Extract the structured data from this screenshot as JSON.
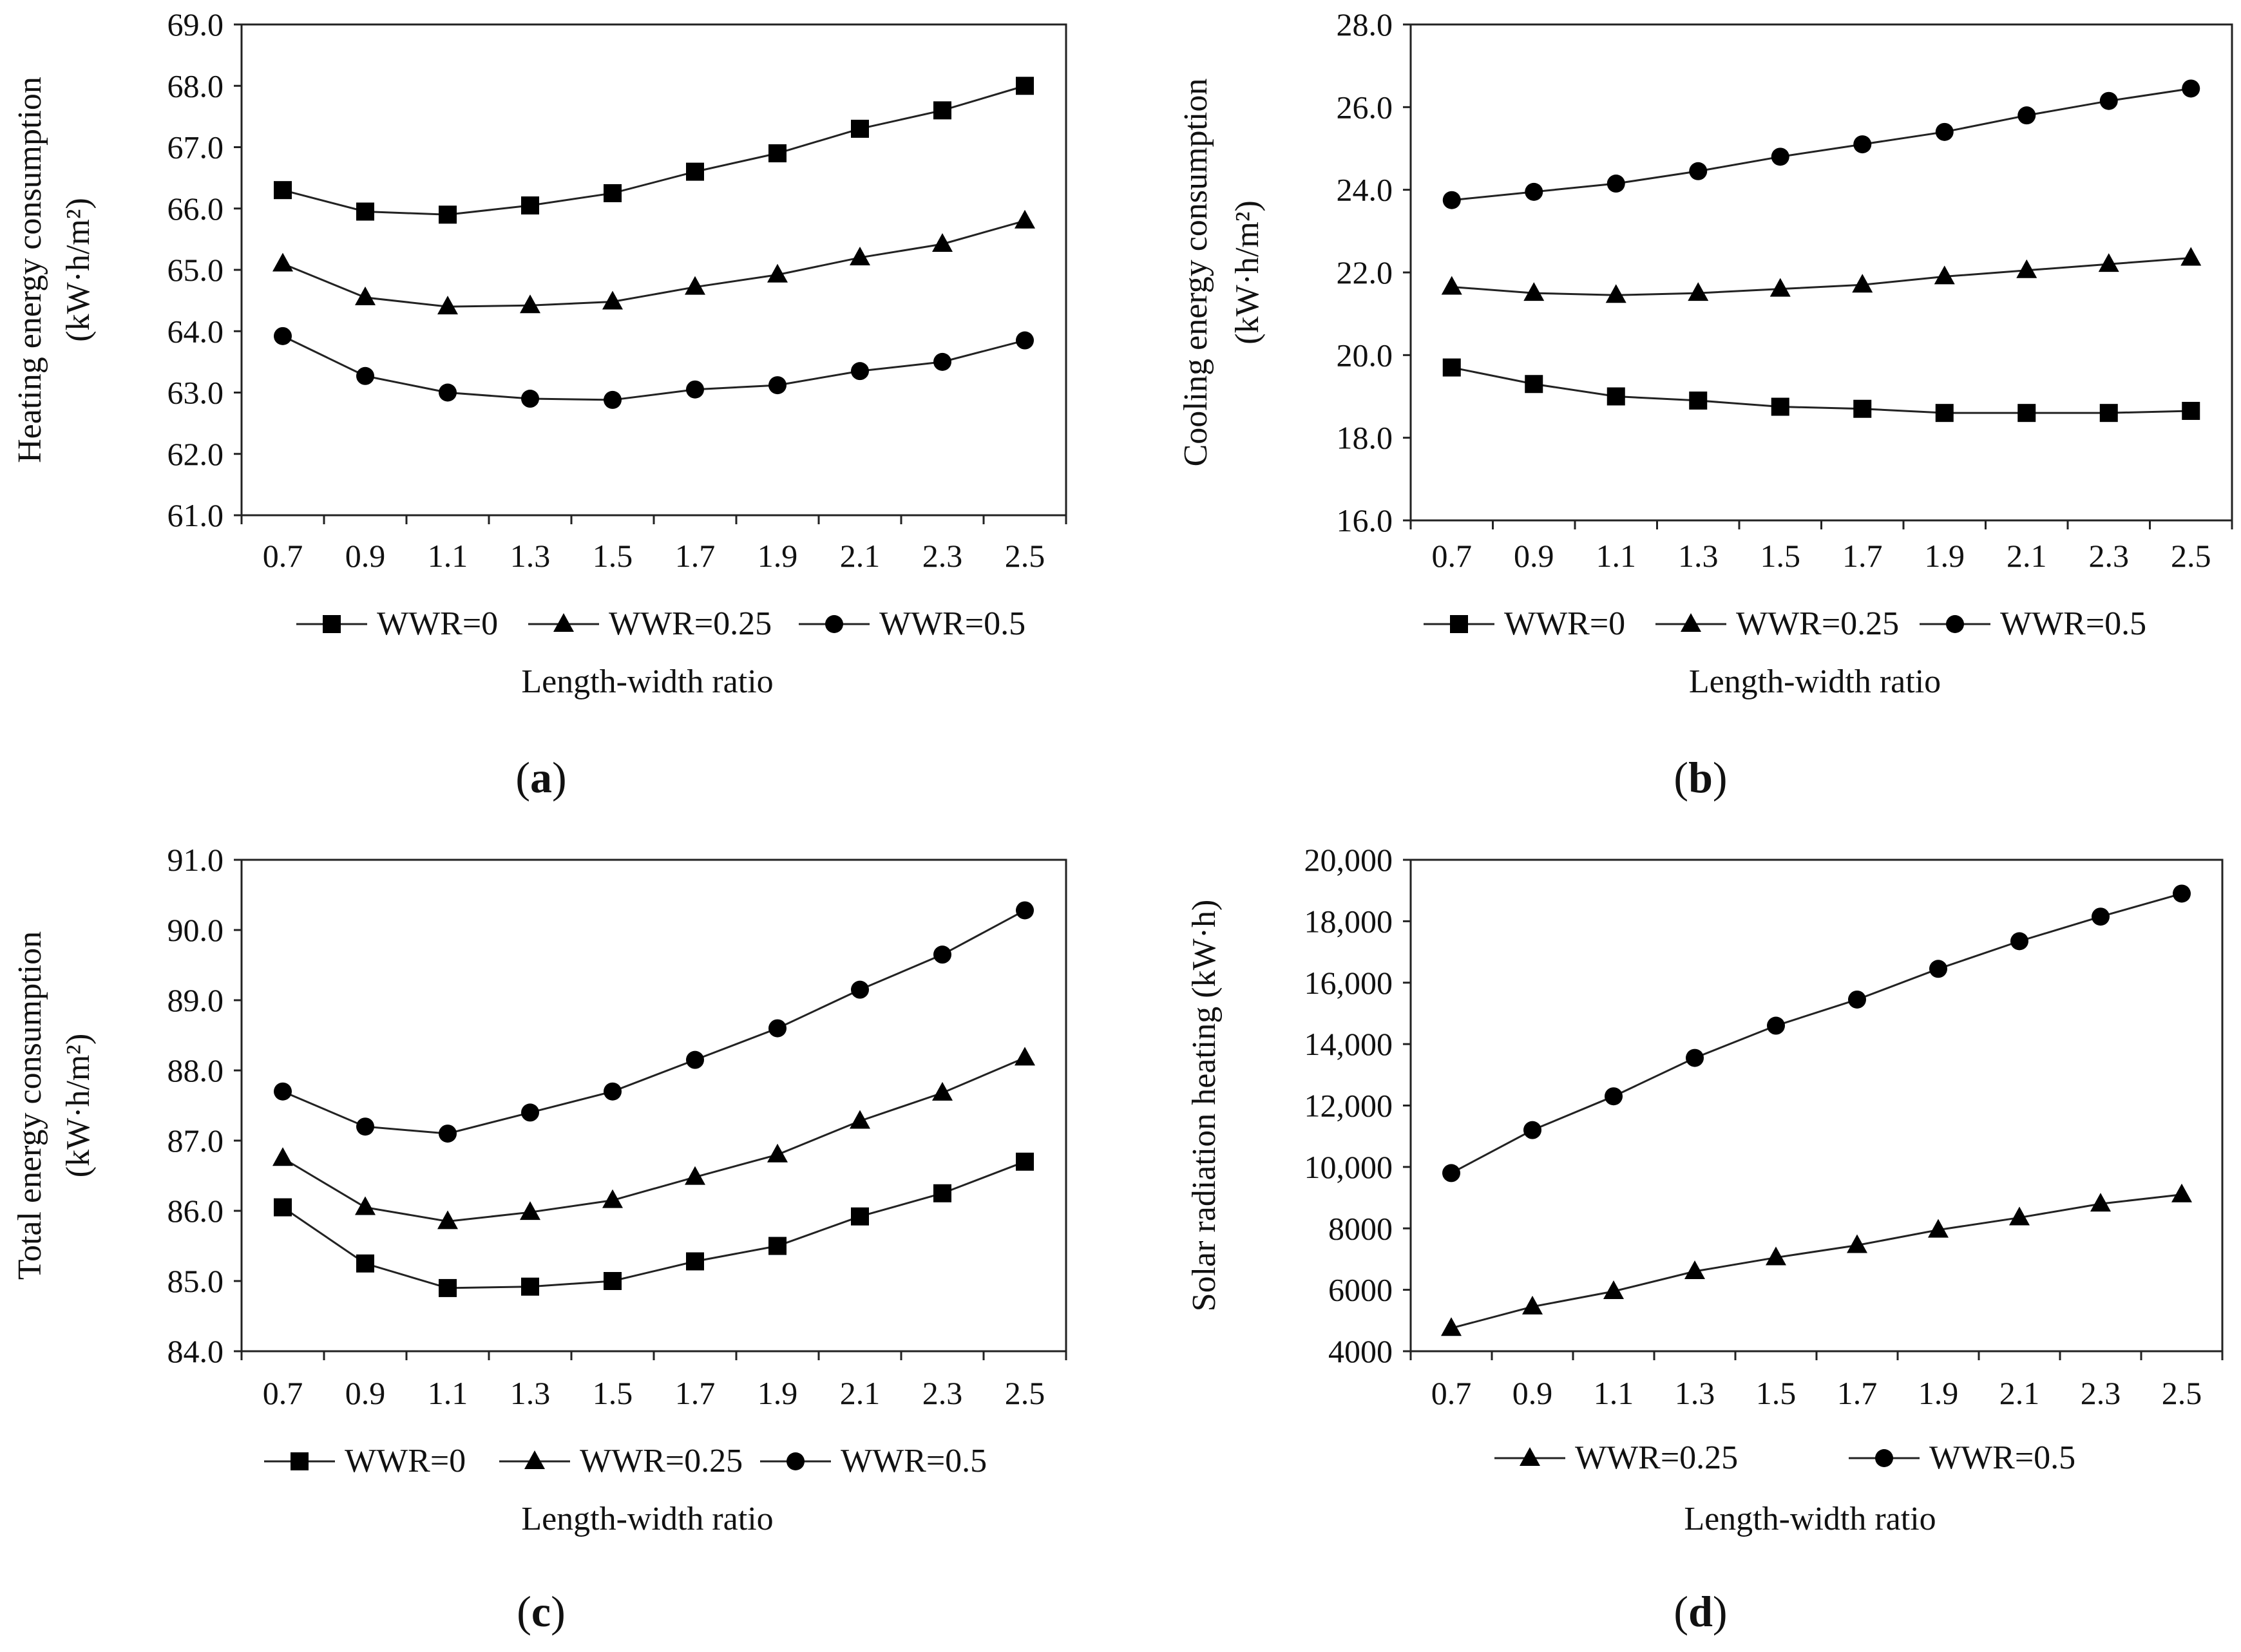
{
  "chart_data": [
    {
      "type": "line",
      "panel_label": "a",
      "ylabel_lines": [
        "Heating  energy consumption",
        "(kW·h/m²)"
      ],
      "xlabel": "Length-width ratio",
      "categories": [
        "0.7",
        "0.9",
        "1.1",
        "1.3",
        "1.5",
        "1.7",
        "1.9",
        "2.1",
        "2.3",
        "2.5"
      ],
      "ylim": [
        61.0,
        69.0
      ],
      "yticks": [
        "61.0",
        "62.0",
        "63.0",
        "64.0",
        "65.0",
        "66.0",
        "67.0",
        "68.0",
        "69.0"
      ],
      "series": [
        {
          "name": "WWR=0",
          "marker": "square",
          "values": [
            66.3,
            65.95,
            65.9,
            66.05,
            66.25,
            66.6,
            66.9,
            67.3,
            67.6,
            68.0
          ]
        },
        {
          "name": "WWR=0.25",
          "marker": "triangle",
          "values": [
            65.1,
            64.55,
            64.4,
            64.42,
            64.48,
            64.72,
            64.92,
            65.2,
            65.42,
            65.8
          ]
        },
        {
          "name": "WWR=0.5",
          "marker": "circle",
          "values": [
            63.92,
            63.27,
            63.0,
            62.9,
            62.88,
            63.05,
            63.12,
            63.35,
            63.5,
            63.85
          ]
        }
      ]
    },
    {
      "type": "line",
      "panel_label": "b",
      "ylabel_lines": [
        "Cooling  energy consumption",
        "(kW·h/m²)"
      ],
      "xlabel": "Length-width ratio",
      "categories": [
        "0.7",
        "0.9",
        "1.1",
        "1.3",
        "1.5",
        "1.7",
        "1.9",
        "2.1",
        "2.3",
        "2.5"
      ],
      "ylim": [
        16.0,
        28.0
      ],
      "yticks": [
        "16.0",
        "18.0",
        "20.0",
        "22.0",
        "24.0",
        "26.0",
        "28.0"
      ],
      "series": [
        {
          "name": "WWR=0",
          "marker": "square",
          "values": [
            19.7,
            19.3,
            19.0,
            18.9,
            18.75,
            18.7,
            18.6,
            18.6,
            18.6,
            18.65
          ]
        },
        {
          "name": "WWR=0.25",
          "marker": "triangle",
          "values": [
            21.65,
            21.5,
            21.45,
            21.5,
            21.6,
            21.7,
            21.9,
            22.05,
            22.2,
            22.35
          ]
        },
        {
          "name": "WWR=0.5",
          "marker": "circle",
          "values": [
            23.75,
            23.95,
            24.15,
            24.45,
            24.8,
            25.1,
            25.4,
            25.8,
            26.15,
            26.45
          ]
        }
      ]
    },
    {
      "type": "line",
      "panel_label": "c",
      "ylabel_lines": [
        "Total energy consumption",
        "(kW·h/m²)"
      ],
      "xlabel": "Length-width ratio",
      "categories": [
        "0.7",
        "0.9",
        "1.1",
        "1.3",
        "1.5",
        "1.7",
        "1.9",
        "2.1",
        "2.3",
        "2.5"
      ],
      "ylim": [
        84.0,
        91.0
      ],
      "yticks": [
        "84.0",
        "85.0",
        "86.0",
        "87.0",
        "88.0",
        "89.0",
        "90.0",
        "91.0"
      ],
      "series": [
        {
          "name": "WWR=0",
          "marker": "square",
          "values": [
            86.05,
            85.25,
            84.9,
            84.92,
            85.0,
            85.28,
            85.5,
            85.92,
            86.25,
            86.7
          ]
        },
        {
          "name": "WWR=0.25",
          "marker": "triangle",
          "values": [
            86.75,
            86.05,
            85.85,
            85.98,
            86.15,
            86.48,
            86.8,
            87.28,
            87.68,
            88.18
          ]
        },
        {
          "name": "WWR=0.5",
          "marker": "circle",
          "values": [
            87.7,
            87.2,
            87.1,
            87.4,
            87.7,
            88.15,
            88.6,
            89.15,
            89.65,
            90.28
          ]
        }
      ]
    },
    {
      "type": "line",
      "panel_label": "d",
      "ylabel_lines": [
        "Solar radiation heating (kW·h)"
      ],
      "xlabel": "Length-width ratio",
      "categories": [
        "0.7",
        "0.9",
        "1.1",
        "1.3",
        "1.5",
        "1.7",
        "1.9",
        "2.1",
        "2.3",
        "2.5"
      ],
      "ylim": [
        4000,
        20000
      ],
      "yticks": [
        "4000",
        "6000",
        "8000",
        "10,000",
        "12,000",
        "14,000",
        "16,000",
        "18,000",
        "20,000"
      ],
      "series": [
        {
          "name": "WWR=0.25",
          "marker": "triangle",
          "values": [
            4750,
            5450,
            5950,
            6600,
            7050,
            7450,
            7950,
            8350,
            8800,
            9100
          ]
        },
        {
          "name": "WWR=0.5",
          "marker": "circle",
          "values": [
            9800,
            11200,
            12300,
            13550,
            14600,
            15450,
            16450,
            17350,
            18150,
            18900
          ]
        }
      ]
    }
  ]
}
